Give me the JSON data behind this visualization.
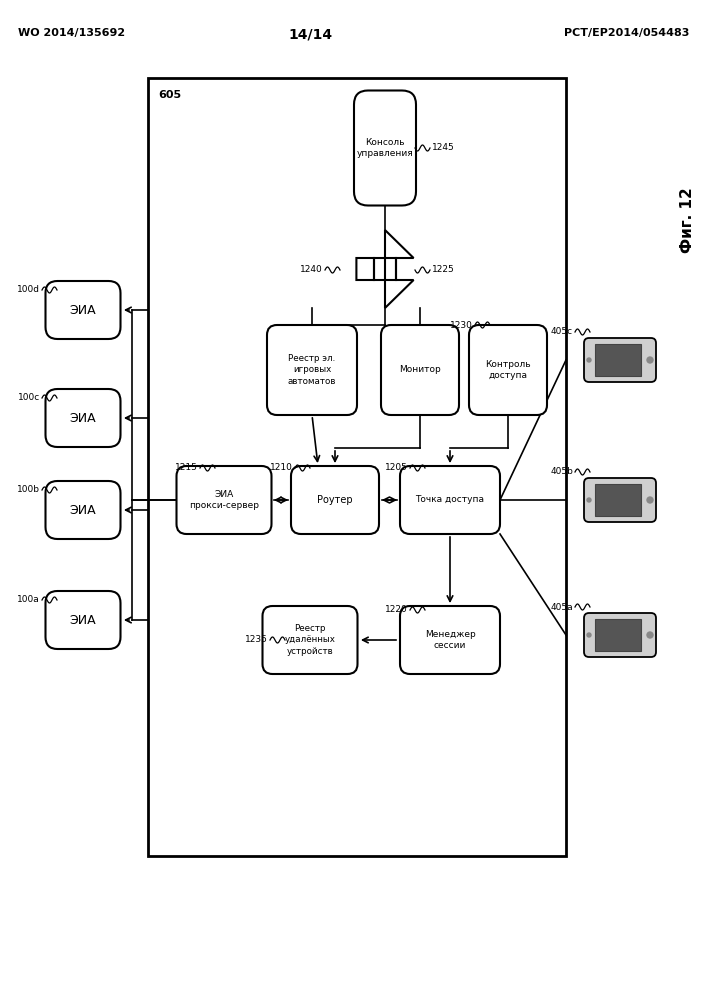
{
  "header_left": "WO 2014/135692",
  "header_right": "PCT/EP2014/054483",
  "page_num": "14/14",
  "fig_label": "Фиг. 12",
  "box_label": "605"
}
